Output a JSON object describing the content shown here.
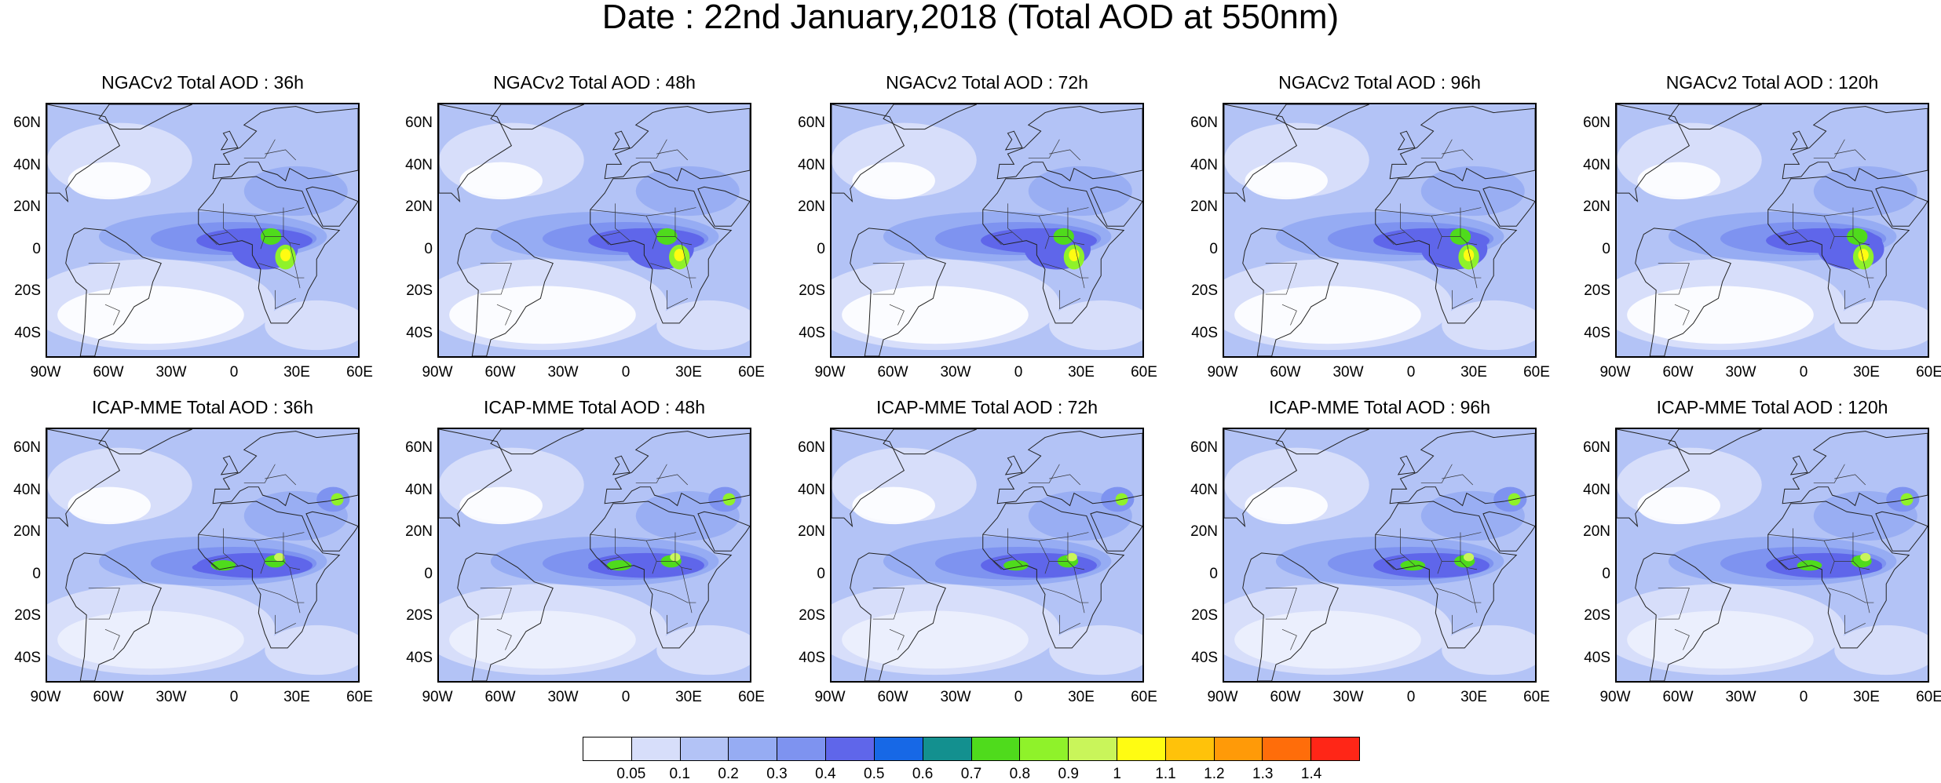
{
  "figure_title": "Date : 22nd January,2018 (Total AOD at 550nm)",
  "panels": [
    {
      "title": "NGACv2 Total AOD : 36h"
    },
    {
      "title": "NGACv2 Total AOD : 48h"
    },
    {
      "title": "NGACv2 Total AOD : 72h"
    },
    {
      "title": "NGACv2 Total AOD : 96h"
    },
    {
      "title": "NGACv2 Total AOD : 120h"
    },
    {
      "title": "ICAP-MME Total AOD : 36h"
    },
    {
      "title": "ICAP-MME Total AOD : 48h"
    },
    {
      "title": "ICAP-MME Total AOD : 72h"
    },
    {
      "title": "ICAP-MME Total AOD : 96h"
    },
    {
      "title": "ICAP-MME Total AOD : 120h"
    }
  ],
  "lat_labels": [
    "60N",
    "40N",
    "20N",
    "0",
    "20S",
    "40S"
  ],
  "lon_labels": [
    "90W",
    "60W",
    "30W",
    "0",
    "30E",
    "60E"
  ],
  "colorbar": {
    "levels": [
      "0.05",
      "0.1",
      "0.2",
      "0.3",
      "0.4",
      "0.5",
      "0.6",
      "0.7",
      "0.8",
      "0.9",
      "1",
      "1.1",
      "1.2",
      "1.3",
      "1.4"
    ],
    "colors": [
      "#ffffff",
      "#d7defa",
      "#b3c3f6",
      "#96acf3",
      "#7e93f0",
      "#5f66ea",
      "#1768e6",
      "#13908f",
      "#4fdb1c",
      "#8ff22a",
      "#c9f55a",
      "#fffc12",
      "#ffc20a",
      "#ff9a08",
      "#ff6d0a",
      "#ff2617"
    ]
  }
}
